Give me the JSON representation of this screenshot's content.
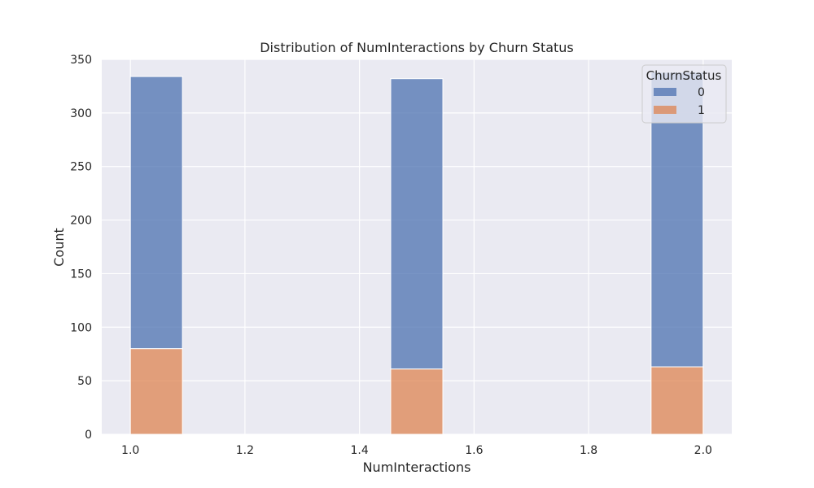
{
  "chart_data": {
    "type": "bar",
    "stacked": true,
    "title": "Distribution of NumInteractions by Churn Status",
    "xlabel": "NumInteractions",
    "ylabel": "Count",
    "xlim": [
      0.95,
      2.05
    ],
    "ylim": [
      0,
      350
    ],
    "xticks": [
      "1.0",
      "1.2",
      "1.4",
      "1.6",
      "1.8",
      "2.0"
    ],
    "yticks": [
      "0",
      "50",
      "100",
      "150",
      "200",
      "250",
      "300",
      "350"
    ],
    "bin_width": 0.0909,
    "bins": [
      {
        "x_start": 1.0,
        "x_end": 1.0909
      },
      {
        "x_start": 1.4545,
        "x_end": 1.5455
      },
      {
        "x_start": 1.9091,
        "x_end": 2.0
      }
    ],
    "series": [
      {
        "name": "1",
        "color": "#DD8452",
        "values": [
          80,
          61,
          63
        ]
      },
      {
        "name": "0",
        "color": "#4C72B0",
        "values": [
          254,
          271,
          275
        ]
      }
    ],
    "legend": {
      "title": "ChurnStatus",
      "placement": "top-right",
      "entries": [
        "0",
        "1"
      ]
    },
    "grid": true
  }
}
